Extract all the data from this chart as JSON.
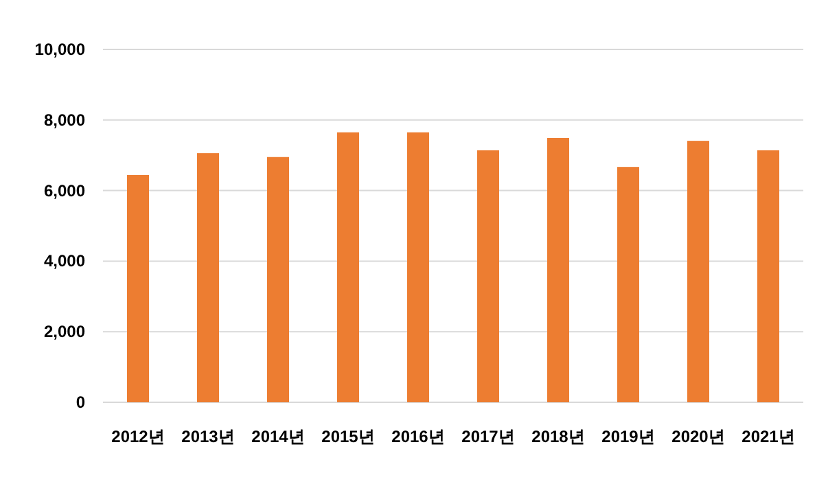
{
  "chart_data": {
    "type": "bar",
    "categories": [
      "2012년",
      "2013년",
      "2014년",
      "2015년",
      "2016년",
      "2017년",
      "2018년",
      "2019년",
      "2020년",
      "2021년"
    ],
    "values": [
      6440,
      7060,
      6950,
      7650,
      7650,
      7140,
      7490,
      6670,
      7410,
      7140
    ],
    "color": "#ed7d31",
    "ylim": [
      0,
      10000
    ],
    "yticks": [
      {
        "value": 0,
        "label": "0"
      },
      {
        "value": 2000,
        "label": "2,000"
      },
      {
        "value": 4000,
        "label": "4,000"
      },
      {
        "value": 6000,
        "label": "6,000"
      },
      {
        "value": 8000,
        "label": "8,000"
      },
      {
        "value": 10000,
        "label": "10,000"
      }
    ],
    "grid": "y"
  }
}
